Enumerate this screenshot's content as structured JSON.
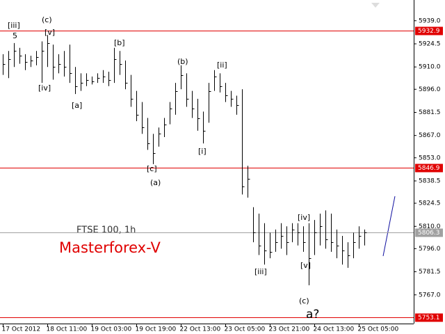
{
  "chart_data": {
    "type": "ohlc",
    "title": "FTSE 100, 1h",
    "subtitle": "Masterforex-V",
    "color": "#000000",
    "categories": [
      "17 Oct 2012",
      null,
      null,
      null,
      null,
      null,
      null,
      null,
      "18 Oct 11:00",
      null,
      null,
      null,
      null,
      null,
      null,
      null,
      "19 Oct 03:00",
      null,
      null,
      null,
      null,
      null,
      null,
      null,
      "19 Oct 19:00",
      null,
      null,
      null,
      null,
      null,
      null,
      null,
      "22 Oct 13:00",
      null,
      null,
      null,
      null,
      null,
      null,
      null,
      "23 Oct 05:00",
      null,
      null,
      null,
      null,
      null,
      null,
      null,
      "23 Oct 21:00",
      null,
      null,
      null,
      null,
      null,
      null,
      null,
      "24 Oct 13:00",
      null,
      null,
      null,
      null,
      null,
      null,
      null,
      "25 Oct 05:00",
      null
    ],
    "high": [
      5918,
      5920,
      5925,
      5922,
      5918,
      5917,
      5920,
      5926,
      5930,
      5924,
      5918,
      5920,
      5924,
      5910,
      5906,
      5906,
      5904,
      5906,
      5908,
      5907,
      5922,
      5920,
      5914,
      5905,
      5895,
      5888,
      5878,
      5868,
      5872,
      5878,
      5888,
      5900,
      5911,
      5906,
      5895,
      5890,
      5882,
      5900,
      5908,
      5906,
      5900,
      5895,
      5892,
      5896,
      5848,
      5822,
      5818,
      5812,
      5806,
      5808,
      5812,
      5810,
      5812,
      5812,
      5810,
      5812,
      5814,
      5818,
      5820,
      5818,
      5808,
      5804,
      5800,
      5806,
      5810,
      5808
    ],
    "low": [
      5905,
      5903,
      5910,
      5912,
      5908,
      5910,
      5911,
      5900,
      5910,
      5902,
      5906,
      5904,
      5900,
      5893,
      5895,
      5898,
      5899,
      5900,
      5900,
      5898,
      5900,
      5905,
      5896,
      5885,
      5876,
      5868,
      5858,
      5849,
      5860,
      5866,
      5874,
      5880,
      5896,
      5885,
      5878,
      5870,
      5862,
      5875,
      5895,
      5894,
      5888,
      5885,
      5880,
      5830,
      5828,
      5800,
      5792,
      5786,
      5790,
      5794,
      5796,
      5792,
      5800,
      5798,
      5794,
      5773,
      5792,
      5798,
      5796,
      5794,
      5790,
      5786,
      5784,
      5790,
      5796,
      5798
    ],
    "close": [
      5912,
      5915,
      5920,
      5917,
      5913,
      5914,
      5916,
      5920,
      5925,
      5910,
      5912,
      5910,
      5906,
      5898,
      5900,
      5902,
      5901,
      5903,
      5904,
      5902,
      5915,
      5912,
      5900,
      5890,
      5880,
      5872,
      5862,
      5856,
      5868,
      5874,
      5884,
      5895,
      5905,
      5890,
      5884,
      5878,
      5870,
      5895,
      5904,
      5898,
      5892,
      5890,
      5886,
      5835,
      5840,
      5806,
      5798,
      5795,
      5794,
      5800,
      5804,
      5800,
      5808,
      5806,
      5800,
      5790,
      5806,
      5810,
      5802,
      5800,
      5798,
      5795,
      5792,
      5800,
      5804,
      5806.3
    ],
    "ylim": [
      5749,
      5952
    ],
    "yticks": [
      {
        "value": 5939,
        "label": "5939.0"
      },
      5924.5,
      {
        "value": 5910,
        "label": "5910.0"
      },
      {
        "value": 5896,
        "label": "5896.0"
      },
      5881.5,
      {
        "value": 5867,
        "label": "5867.0"
      },
      {
        "value": 5853,
        "label": "5853.0"
      },
      5838.5,
      5824.5,
      {
        "value": 5810,
        "label": "5810.0"
      },
      {
        "value": 5796,
        "label": "5796.0"
      },
      5781.5,
      {
        "value": 5767,
        "label": "5767.0"
      }
    ],
    "levels": [
      {
        "value": 5932.9,
        "color": "#e00000"
      },
      {
        "value": 5846.9,
        "color": "#e00000"
      },
      {
        "value": 5753.1,
        "color": "#e00000"
      },
      {
        "value": 5806.3,
        "color": "#a0a0a0"
      }
    ],
    "annotations": [
      "[iii]",
      "5",
      "(c)",
      "[v]",
      "[iv]",
      "[a]",
      "[b]",
      "[c]",
      "(a)",
      "(b)",
      "[ii]",
      "[i]",
      "[iii]",
      "[iv]",
      "[v]",
      "(c)",
      "a?"
    ]
  }
}
